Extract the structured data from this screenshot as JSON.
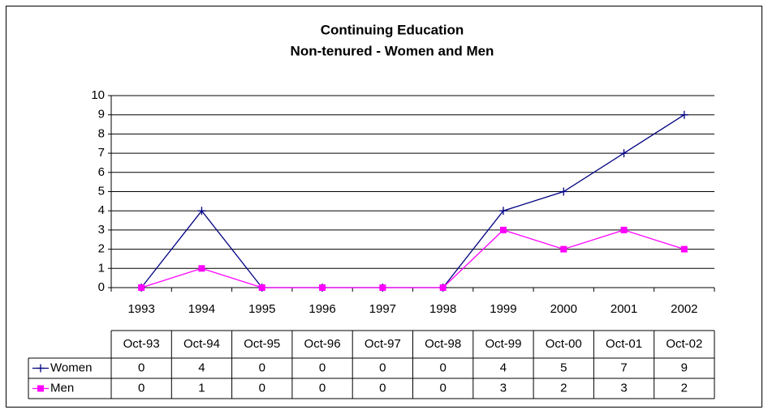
{
  "chart_data": {
    "type": "line",
    "title": "Continuing Education",
    "subtitle": "Non-tenured - Women and Men",
    "categories": [
      "1993",
      "1994",
      "1995",
      "1996",
      "1997",
      "1998",
      "1999",
      "2000",
      "2001",
      "2002"
    ],
    "table_header": [
      "Oct-93",
      "Oct-94",
      "Oct-95",
      "Oct-96",
      "Oct-97",
      "Oct-98",
      "Oct-99",
      "Oct-00",
      "Oct-01",
      "Oct-02"
    ],
    "series": [
      {
        "name": "Women",
        "color": "#000080",
        "marker": "plus",
        "values": [
          0,
          4,
          0,
          0,
          0,
          0,
          4,
          5,
          7,
          9
        ]
      },
      {
        "name": "Men",
        "color": "#ff00ff",
        "marker": "square",
        "values": [
          0,
          1,
          0,
          0,
          0,
          0,
          3,
          2,
          3,
          2
        ]
      }
    ],
    "ylim": [
      0,
      10
    ],
    "yticks": [
      0,
      1,
      2,
      3,
      4,
      5,
      6,
      7,
      8,
      9,
      10
    ],
    "grid": true
  }
}
